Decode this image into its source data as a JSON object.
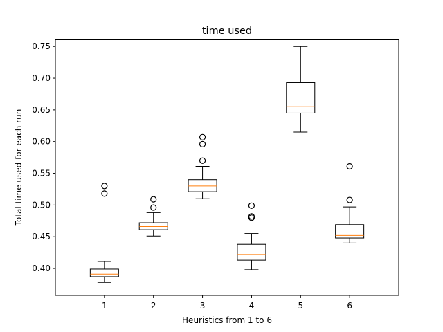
{
  "chart_data": {
    "type": "box",
    "title": "time used",
    "xlabel": "Heuristics from 1 to 6",
    "ylabel": "Total time used for each run",
    "ylim": [
      0.3575,
      0.7606
    ],
    "yticks": [
      "0.40",
      "0.45",
      "0.50",
      "0.55",
      "0.60",
      "0.65",
      "0.70",
      "0.75"
    ],
    "grid": false,
    "colors": {
      "box": "#000000",
      "median": "#ff7f0e",
      "outlier": "#000000"
    },
    "boxes": [
      {
        "label": "1",
        "whisker_low": 0.378,
        "q1": 0.387,
        "median": 0.391,
        "q3": 0.399,
        "whisker_high": 0.411,
        "outliers": [
          0.518,
          0.53
        ]
      },
      {
        "label": "2",
        "whisker_low": 0.451,
        "q1": 0.461,
        "median": 0.466,
        "q3": 0.472,
        "whisker_high": 0.488,
        "outliers": [
          0.496,
          0.509
        ]
      },
      {
        "label": "3",
        "whisker_low": 0.51,
        "q1": 0.521,
        "median": 0.53,
        "q3": 0.54,
        "whisker_high": 0.561,
        "outliers": [
          0.57,
          0.596,
          0.607
        ]
      },
      {
        "label": "4",
        "whisker_low": 0.398,
        "q1": 0.413,
        "median": 0.422,
        "q3": 0.438,
        "whisker_high": 0.455,
        "outliers": [
          0.48,
          0.482,
          0.499
        ]
      },
      {
        "label": "5",
        "whisker_low": 0.615,
        "q1": 0.645,
        "median": 0.655,
        "q3": 0.693,
        "whisker_high": 0.75,
        "outliers": []
      },
      {
        "label": "6",
        "whisker_low": 0.44,
        "q1": 0.448,
        "median": 0.452,
        "q3": 0.469,
        "whisker_high": 0.497,
        "outliers": [
          0.508,
          0.561
        ]
      }
    ]
  }
}
